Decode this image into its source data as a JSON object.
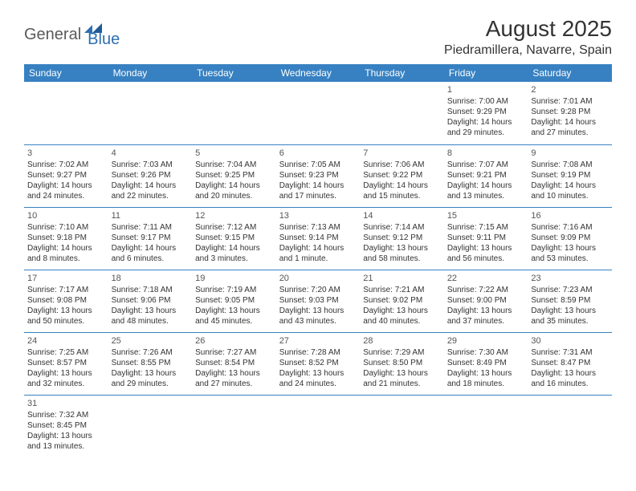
{
  "brand": {
    "part1": "General",
    "part2": "Blue"
  },
  "title": "August 2025",
  "location": "Piedramillera, Navarre, Spain",
  "colors": {
    "header_bg": "#3781c2",
    "header_fg": "#ffffff",
    "rule": "#3781c2",
    "text": "#333333"
  },
  "day_headers": [
    "Sunday",
    "Monday",
    "Tuesday",
    "Wednesday",
    "Thursday",
    "Friday",
    "Saturday"
  ],
  "weeks": [
    [
      null,
      null,
      null,
      null,
      null,
      {
        "n": "1",
        "sr": "Sunrise: 7:00 AM",
        "ss": "Sunset: 9:29 PM",
        "d1": "Daylight: 14 hours",
        "d2": "and 29 minutes."
      },
      {
        "n": "2",
        "sr": "Sunrise: 7:01 AM",
        "ss": "Sunset: 9:28 PM",
        "d1": "Daylight: 14 hours",
        "d2": "and 27 minutes."
      }
    ],
    [
      {
        "n": "3",
        "sr": "Sunrise: 7:02 AM",
        "ss": "Sunset: 9:27 PM",
        "d1": "Daylight: 14 hours",
        "d2": "and 24 minutes."
      },
      {
        "n": "4",
        "sr": "Sunrise: 7:03 AM",
        "ss": "Sunset: 9:26 PM",
        "d1": "Daylight: 14 hours",
        "d2": "and 22 minutes."
      },
      {
        "n": "5",
        "sr": "Sunrise: 7:04 AM",
        "ss": "Sunset: 9:25 PM",
        "d1": "Daylight: 14 hours",
        "d2": "and 20 minutes."
      },
      {
        "n": "6",
        "sr": "Sunrise: 7:05 AM",
        "ss": "Sunset: 9:23 PM",
        "d1": "Daylight: 14 hours",
        "d2": "and 17 minutes."
      },
      {
        "n": "7",
        "sr": "Sunrise: 7:06 AM",
        "ss": "Sunset: 9:22 PM",
        "d1": "Daylight: 14 hours",
        "d2": "and 15 minutes."
      },
      {
        "n": "8",
        "sr": "Sunrise: 7:07 AM",
        "ss": "Sunset: 9:21 PM",
        "d1": "Daylight: 14 hours",
        "d2": "and 13 minutes."
      },
      {
        "n": "9",
        "sr": "Sunrise: 7:08 AM",
        "ss": "Sunset: 9:19 PM",
        "d1": "Daylight: 14 hours",
        "d2": "and 10 minutes."
      }
    ],
    [
      {
        "n": "10",
        "sr": "Sunrise: 7:10 AM",
        "ss": "Sunset: 9:18 PM",
        "d1": "Daylight: 14 hours",
        "d2": "and 8 minutes."
      },
      {
        "n": "11",
        "sr": "Sunrise: 7:11 AM",
        "ss": "Sunset: 9:17 PM",
        "d1": "Daylight: 14 hours",
        "d2": "and 6 minutes."
      },
      {
        "n": "12",
        "sr": "Sunrise: 7:12 AM",
        "ss": "Sunset: 9:15 PM",
        "d1": "Daylight: 14 hours",
        "d2": "and 3 minutes."
      },
      {
        "n": "13",
        "sr": "Sunrise: 7:13 AM",
        "ss": "Sunset: 9:14 PM",
        "d1": "Daylight: 14 hours",
        "d2": "and 1 minute."
      },
      {
        "n": "14",
        "sr": "Sunrise: 7:14 AM",
        "ss": "Sunset: 9:12 PM",
        "d1": "Daylight: 13 hours",
        "d2": "and 58 minutes."
      },
      {
        "n": "15",
        "sr": "Sunrise: 7:15 AM",
        "ss": "Sunset: 9:11 PM",
        "d1": "Daylight: 13 hours",
        "d2": "and 56 minutes."
      },
      {
        "n": "16",
        "sr": "Sunrise: 7:16 AM",
        "ss": "Sunset: 9:09 PM",
        "d1": "Daylight: 13 hours",
        "d2": "and 53 minutes."
      }
    ],
    [
      {
        "n": "17",
        "sr": "Sunrise: 7:17 AM",
        "ss": "Sunset: 9:08 PM",
        "d1": "Daylight: 13 hours",
        "d2": "and 50 minutes."
      },
      {
        "n": "18",
        "sr": "Sunrise: 7:18 AM",
        "ss": "Sunset: 9:06 PM",
        "d1": "Daylight: 13 hours",
        "d2": "and 48 minutes."
      },
      {
        "n": "19",
        "sr": "Sunrise: 7:19 AM",
        "ss": "Sunset: 9:05 PM",
        "d1": "Daylight: 13 hours",
        "d2": "and 45 minutes."
      },
      {
        "n": "20",
        "sr": "Sunrise: 7:20 AM",
        "ss": "Sunset: 9:03 PM",
        "d1": "Daylight: 13 hours",
        "d2": "and 43 minutes."
      },
      {
        "n": "21",
        "sr": "Sunrise: 7:21 AM",
        "ss": "Sunset: 9:02 PM",
        "d1": "Daylight: 13 hours",
        "d2": "and 40 minutes."
      },
      {
        "n": "22",
        "sr": "Sunrise: 7:22 AM",
        "ss": "Sunset: 9:00 PM",
        "d1": "Daylight: 13 hours",
        "d2": "and 37 minutes."
      },
      {
        "n": "23",
        "sr": "Sunrise: 7:23 AM",
        "ss": "Sunset: 8:59 PM",
        "d1": "Daylight: 13 hours",
        "d2": "and 35 minutes."
      }
    ],
    [
      {
        "n": "24",
        "sr": "Sunrise: 7:25 AM",
        "ss": "Sunset: 8:57 PM",
        "d1": "Daylight: 13 hours",
        "d2": "and 32 minutes."
      },
      {
        "n": "25",
        "sr": "Sunrise: 7:26 AM",
        "ss": "Sunset: 8:55 PM",
        "d1": "Daylight: 13 hours",
        "d2": "and 29 minutes."
      },
      {
        "n": "26",
        "sr": "Sunrise: 7:27 AM",
        "ss": "Sunset: 8:54 PM",
        "d1": "Daylight: 13 hours",
        "d2": "and 27 minutes."
      },
      {
        "n": "27",
        "sr": "Sunrise: 7:28 AM",
        "ss": "Sunset: 8:52 PM",
        "d1": "Daylight: 13 hours",
        "d2": "and 24 minutes."
      },
      {
        "n": "28",
        "sr": "Sunrise: 7:29 AM",
        "ss": "Sunset: 8:50 PM",
        "d1": "Daylight: 13 hours",
        "d2": "and 21 minutes."
      },
      {
        "n": "29",
        "sr": "Sunrise: 7:30 AM",
        "ss": "Sunset: 8:49 PM",
        "d1": "Daylight: 13 hours",
        "d2": "and 18 minutes."
      },
      {
        "n": "30",
        "sr": "Sunrise: 7:31 AM",
        "ss": "Sunset: 8:47 PM",
        "d1": "Daylight: 13 hours",
        "d2": "and 16 minutes."
      }
    ],
    [
      {
        "n": "31",
        "sr": "Sunrise: 7:32 AM",
        "ss": "Sunset: 8:45 PM",
        "d1": "Daylight: 13 hours",
        "d2": "and 13 minutes."
      },
      null,
      null,
      null,
      null,
      null,
      null
    ]
  ]
}
